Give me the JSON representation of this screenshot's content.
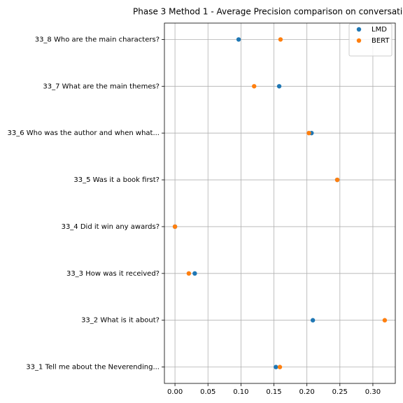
{
  "chart_data": {
    "type": "scatter",
    "title": "Phase 3 Method 1 - Average Precision comparison on conversati",
    "categories": [
      "33_1 Tell me about the Neverending...",
      "33_2 What is it about?",
      "33_3 How was it received?",
      "33_4 Did it win any awards?",
      "33_5 Was it a book first?",
      "33_6 Who was the author and when what...",
      "33_7 What are the main themes?",
      "33_8 Who are the main characters?"
    ],
    "series": [
      {
        "name": "LMD",
        "color": "#1f77b4",
        "values": [
          0.153,
          0.209,
          0.03,
          0.0,
          0.246,
          0.207,
          0.158,
          0.0965
        ]
      },
      {
        "name": "BERT",
        "color": "#ff7f0e",
        "values": [
          0.159,
          0.318,
          0.021,
          0.0,
          0.246,
          0.203,
          0.12,
          0.16
        ]
      }
    ],
    "xlim": [
      -0.016,
      0.334
    ],
    "xticks": [
      {
        "value": 0,
        "label": "0.00"
      },
      0.05,
      {
        "value": 0.1,
        "label": "0.10"
      },
      0.15,
      {
        "value": 0.2,
        "label": "0.20"
      },
      0.25,
      {
        "value": 0.3,
        "label": "0.30"
      }
    ],
    "grid": true,
    "legend": "upper right"
  }
}
